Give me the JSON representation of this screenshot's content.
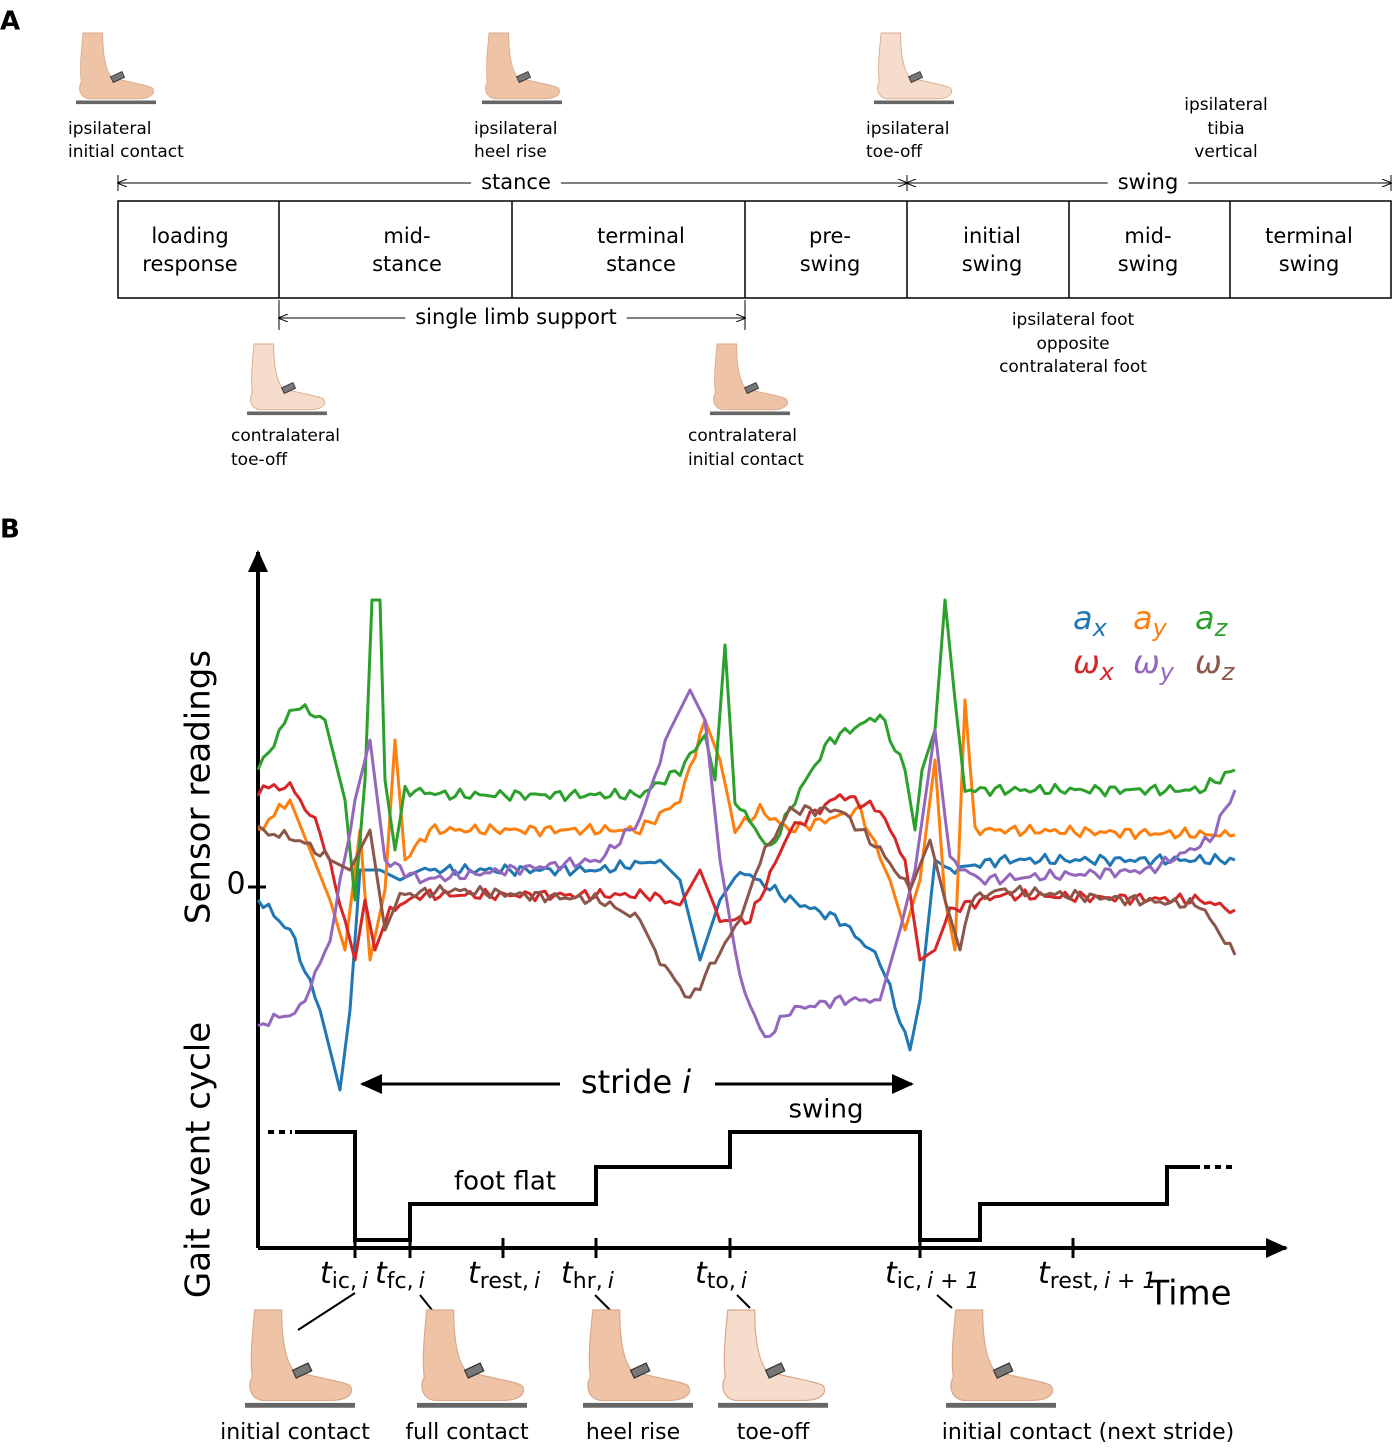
{
  "panel_a": {
    "label": "A",
    "top_events": [
      {
        "lines": [
          "ipsilateral",
          "initial contact"
        ]
      },
      {
        "lines": [
          "ipsilateral",
          "heel rise"
        ]
      },
      {
        "lines": [
          "ipsilateral",
          "toe-off"
        ]
      },
      {
        "lines": [
          "ipsilateral",
          "tibia",
          "vertical"
        ]
      }
    ],
    "stance": "stance",
    "swing": "swing",
    "phases": [
      {
        "lines": [
          "loading",
          "response"
        ]
      },
      {
        "lines": [
          "mid-",
          "stance"
        ]
      },
      {
        "lines": [
          "terminal",
          "stance"
        ]
      },
      {
        "lines": [
          "pre-",
          "swing"
        ]
      },
      {
        "lines": [
          "initial",
          "swing"
        ]
      },
      {
        "lines": [
          "mid-",
          "swing"
        ]
      },
      {
        "lines": [
          "terminal",
          "swing"
        ]
      }
    ],
    "single_limb_support": "single limb support",
    "bottom_events": [
      {
        "lines": [
          "contralateral",
          "toe-off"
        ]
      },
      {
        "lines": [
          "contralateral",
          "initial contact"
        ]
      },
      {
        "lines": [
          "ipsilateral foot",
          "opposite",
          "contralateral foot"
        ]
      }
    ]
  },
  "panel_b": {
    "label": "B",
    "y_label_top": "Sensor readings",
    "y_label_bottom": "Gait event cycle",
    "zero": "0",
    "legend": [
      {
        "main": "a",
        "sub": "x",
        "color": "#1f77b4"
      },
      {
        "main": "a",
        "sub": "y",
        "color": "#ff7f0e"
      },
      {
        "main": "a",
        "sub": "z",
        "color": "#2ca02c"
      },
      {
        "main": "ω",
        "sub": "x",
        "color": "#d62728"
      },
      {
        "main": "ω",
        "sub": "y",
        "color": "#9467bd"
      },
      {
        "main": "ω",
        "sub": "z",
        "color": "#8c564b"
      }
    ],
    "stride": {
      "word": "stride",
      "index": "i"
    },
    "swing": "swing",
    "foot_flat": "foot flat",
    "ticks": [
      {
        "main": "t",
        "sub": "ic,",
        "index": "i"
      },
      {
        "main": "t",
        "sub": "fc,",
        "index": "i"
      },
      {
        "main": "t",
        "sub": "rest,",
        "index": "i"
      },
      {
        "main": "t",
        "sub": "hr,",
        "index": "i"
      },
      {
        "main": "t",
        "sub": "to,",
        "index": "i"
      },
      {
        "main": "t",
        "sub": "ic,",
        "index": "i + 1"
      },
      {
        "main": "t",
        "sub": "rest,",
        "index": "i + 1"
      }
    ],
    "x_label": "Time",
    "captions": [
      "initial contact",
      "full contact",
      "heel rise",
      "toe-off",
      "initial contact (next stride)"
    ]
  }
}
